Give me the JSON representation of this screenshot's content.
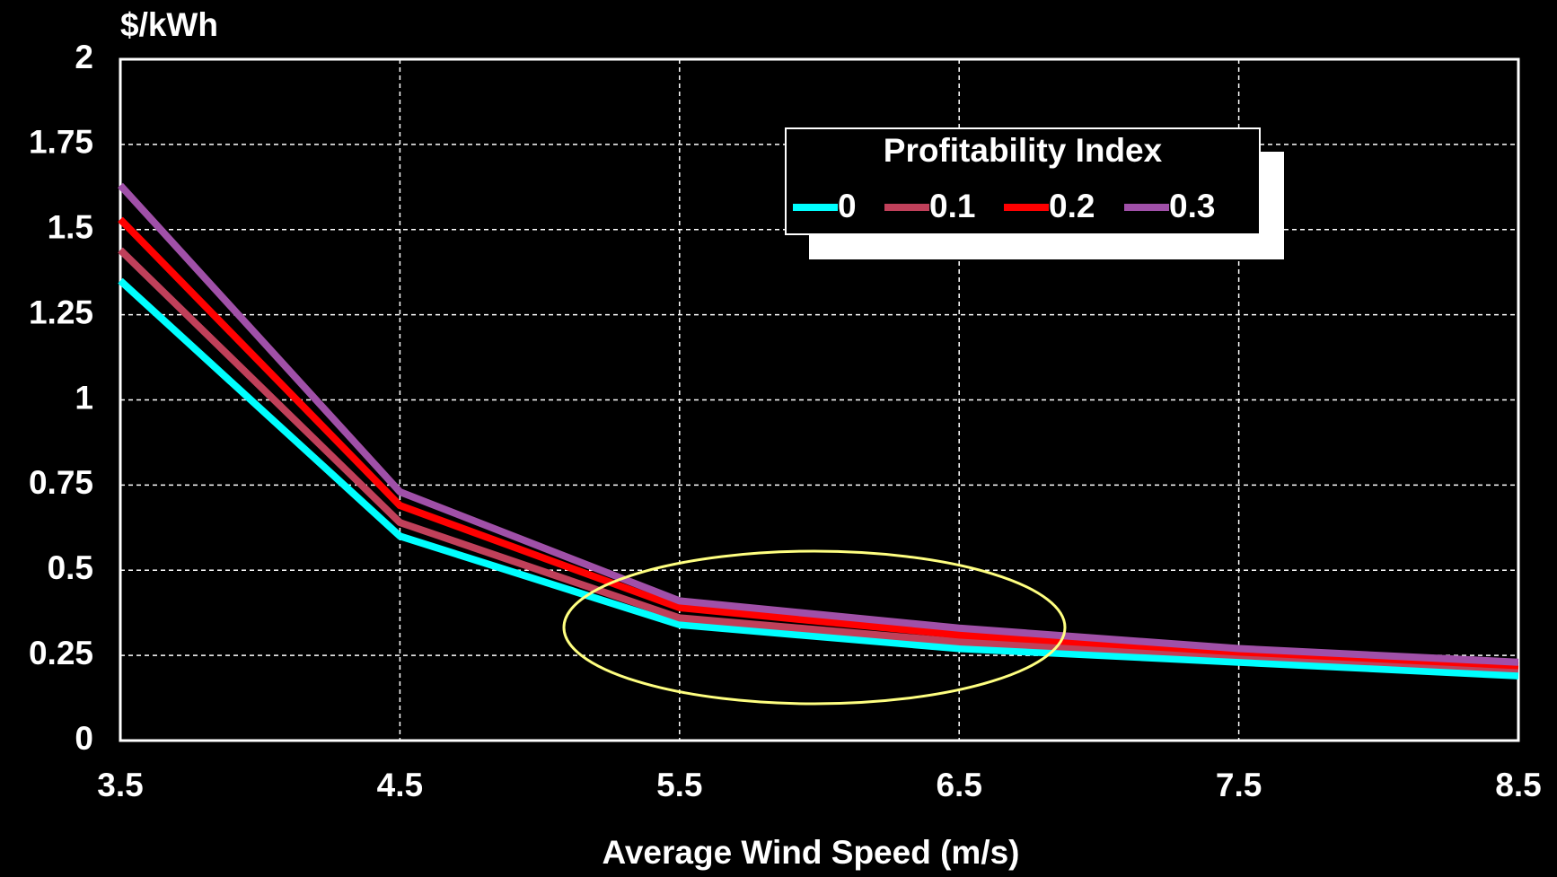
{
  "chart_data": {
    "type": "line",
    "y_label": "$/kWh",
    "x_label": "Average Wind Speed (m/s)",
    "legend_title": "Profitability Index",
    "x": [
      3.5,
      4.5,
      5.5,
      6.5,
      7.5,
      8.5
    ],
    "series": [
      {
        "name": "0",
        "color": "#00ffff",
        "values": [
          1.35,
          0.6,
          0.34,
          0.27,
          0.23,
          0.19
        ]
      },
      {
        "name": "0.1",
        "color": "#c0405a",
        "values": [
          1.44,
          0.64,
          0.36,
          0.29,
          0.25,
          0.21
        ]
      },
      {
        "name": "0.2",
        "color": "#ff0000",
        "values": [
          1.53,
          0.69,
          0.39,
          0.31,
          0.26,
          0.22
        ]
      },
      {
        "name": "0.3",
        "color": "#a050a8",
        "values": [
          1.63,
          0.73,
          0.41,
          0.33,
          0.27,
          0.23
        ]
      }
    ],
    "xlim": [
      3.5,
      8.5
    ],
    "xticks": [
      3.5,
      4.5,
      5.5,
      6.5,
      7.5,
      8.5
    ],
    "ylim": [
      0,
      2
    ],
    "yticks": [
      0,
      0.25,
      0.5,
      0.75,
      1,
      1.25,
      1.5,
      1.75,
      2
    ],
    "grid": true
  }
}
